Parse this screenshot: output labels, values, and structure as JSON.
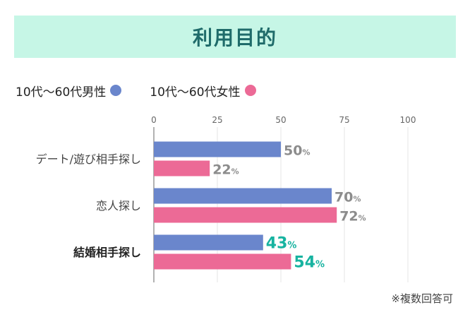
{
  "header": {
    "title": "利用目的"
  },
  "legend": [
    {
      "label": "10代〜60代男性",
      "color": "#6a86cc"
    },
    {
      "label": "10代〜60代女性",
      "color": "#ec6a96"
    }
  ],
  "note": "※複数回答可",
  "chart_data": {
    "type": "bar",
    "orientation": "horizontal",
    "title": "利用目的",
    "xlim": [
      0,
      100
    ],
    "x_ticks": [
      "0",
      "25",
      "50",
      "75",
      "100"
    ],
    "grid": true,
    "legend_position": "top-left",
    "categories": [
      "デート/遊び相手探し",
      "恋人探し",
      "結婚相手探し"
    ],
    "series": [
      {
        "name": "10代〜60代男性",
        "color": "#6a86cc",
        "values": [
          50,
          70,
          43
        ]
      },
      {
        "name": "10代〜60代女性",
        "color": "#ec6a96",
        "values": [
          22,
          72,
          54
        ]
      }
    ],
    "value_suffix": "%",
    "highlight_category_index": 2,
    "label_color": "#8c8c8c",
    "highlight_label_color": "#17b3a0"
  }
}
